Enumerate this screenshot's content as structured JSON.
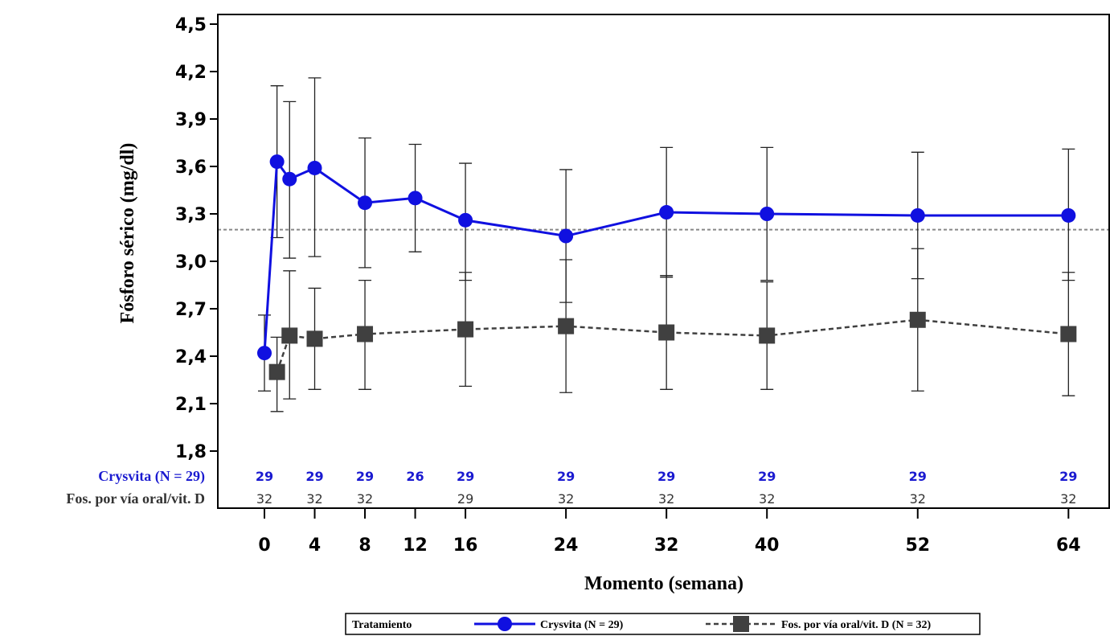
{
  "chart_data": {
    "type": "line",
    "ylabel": "Fósforo sérico (mg/dl)",
    "xlabel": "Momento (semana)",
    "ylim": [
      1.8,
      4.5
    ],
    "yticks": [
      "1,8",
      "2,1",
      "2,4",
      "2,7",
      "3,0",
      "3,3",
      "3,6",
      "3,9",
      "4,2",
      "4,5"
    ],
    "ytick_values": [
      1.8,
      2.1,
      2.4,
      2.7,
      3.0,
      3.3,
      3.6,
      3.9,
      4.2,
      4.5
    ],
    "xticks": [
      "0",
      "4",
      "8",
      "12",
      "16",
      "24",
      "32",
      "40",
      "52",
      "64"
    ],
    "xtick_values": [
      0,
      4,
      8,
      12,
      16,
      24,
      32,
      40,
      52,
      64
    ],
    "reference_line": 3.2,
    "series": [
      {
        "name": "Crysvita (N = 29)",
        "color": "#1010e0",
        "marker": "circle",
        "line_style": "solid",
        "x": [
          0,
          1,
          2,
          4,
          8,
          12,
          16,
          24,
          32,
          40,
          52,
          64
        ],
        "y": [
          2.42,
          3.63,
          3.52,
          3.59,
          3.37,
          3.4,
          3.26,
          3.16,
          3.31,
          3.3,
          3.29,
          3.29
        ],
        "err_low": [
          2.18,
          3.15,
          3.02,
          3.03,
          2.96,
          3.06,
          2.88,
          2.74,
          2.9,
          2.88,
          2.89,
          2.88
        ],
        "err_high": [
          2.66,
          4.11,
          4.01,
          4.16,
          3.78,
          3.74,
          3.62,
          3.58,
          3.72,
          3.72,
          3.69,
          3.71
        ]
      },
      {
        "name": "Fos. por vía oral/vit. D (N = 32)",
        "color": "#404040",
        "marker": "square",
        "line_style": "dashed",
        "x": [
          1,
          2,
          4,
          8,
          16,
          24,
          32,
          40,
          52,
          64
        ],
        "y": [
          2.3,
          2.53,
          2.51,
          2.54,
          2.57,
          2.59,
          2.55,
          2.53,
          2.63,
          2.54
        ],
        "err_low": [
          2.05,
          2.13,
          2.19,
          2.19,
          2.21,
          2.17,
          2.19,
          2.19,
          2.18,
          2.15
        ],
        "err_high": [
          2.52,
          2.94,
          2.83,
          2.88,
          2.93,
          3.01,
          2.91,
          2.87,
          3.08,
          2.93
        ]
      }
    ],
    "n_at_risk": {
      "rows": [
        {
          "label": "Crysvita (N = 29)",
          "color": "#1a1ad0",
          "x": [
            0,
            4,
            8,
            12,
            16,
            24,
            32,
            40,
            52,
            64
          ],
          "values": [
            "29",
            "29",
            "29",
            "26",
            "29",
            "29",
            "29",
            "29",
            "29",
            "29"
          ]
        },
        {
          "label": "Fos. por vía oral/vit. D",
          "color": "#333333",
          "x": [
            0,
            4,
            8,
            16,
            24,
            32,
            40,
            52,
            64
          ],
          "values": [
            "32",
            "32",
            "32",
            "29",
            "32",
            "32",
            "32",
            "32",
            "32"
          ]
        }
      ]
    },
    "legend": {
      "title": "Tratamiento",
      "position": "bottom",
      "entries": [
        "Crysvita (N = 29)",
        "Fos. por vía oral/vit. D (N = 32)"
      ]
    }
  }
}
